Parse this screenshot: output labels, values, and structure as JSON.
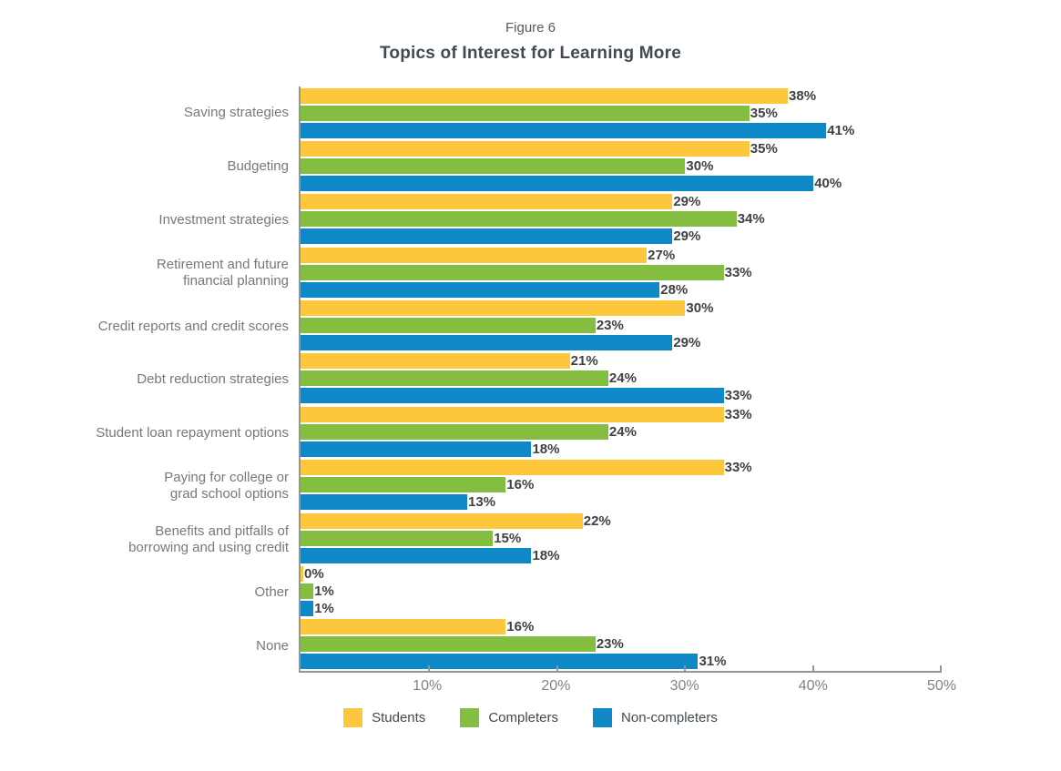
{
  "header": {
    "figure_label": "Figure 6",
    "title": "Topics of Interest for Learning More"
  },
  "colors": {
    "students": "#FCC63D",
    "completers": "#84BE41",
    "non_completers": "#0E88C6",
    "axis": "#939598",
    "value_label": "#414042",
    "category_label": "#77787b",
    "tick_label": "#808285"
  },
  "chart_data": {
    "type": "bar",
    "orientation": "horizontal",
    "title": "Topics of Interest for Learning More",
    "figure_label": "Figure 6",
    "categories": [
      "Saving strategies",
      "Budgeting",
      "Investment strategies",
      "Retirement and future\nfinancial planning",
      "Credit reports and credit scores",
      "Debt reduction strategies",
      "Student loan repayment options",
      "Paying for college or\ngrad school options",
      "Benefits and pitfalls of\nborrowing and using credit",
      "Other",
      "None"
    ],
    "series": [
      {
        "name": "Students",
        "color": "#FCC63D",
        "values": [
          38,
          35,
          29,
          27,
          30,
          21,
          33,
          33,
          22,
          0,
          16
        ]
      },
      {
        "name": "Completers",
        "color": "#84BE41",
        "values": [
          35,
          30,
          34,
          33,
          23,
          24,
          24,
          16,
          15,
          1,
          23
        ]
      },
      {
        "name": "Non-completers",
        "color": "#0E88C6",
        "values": [
          41,
          40,
          29,
          28,
          29,
          33,
          18,
          13,
          18,
          1,
          31
        ]
      }
    ],
    "value_suffix": "%",
    "xlim": [
      0,
      50
    ],
    "x_ticks": [
      {
        "value": 10,
        "label": "10%"
      },
      {
        "value": 20,
        "label": "20%"
      },
      {
        "value": 30,
        "label": "30%"
      },
      {
        "value": 40,
        "label": "40%"
      },
      {
        "value": 50,
        "label": "50%"
      }
    ],
    "grid": false,
    "legend_position": "bottom"
  }
}
